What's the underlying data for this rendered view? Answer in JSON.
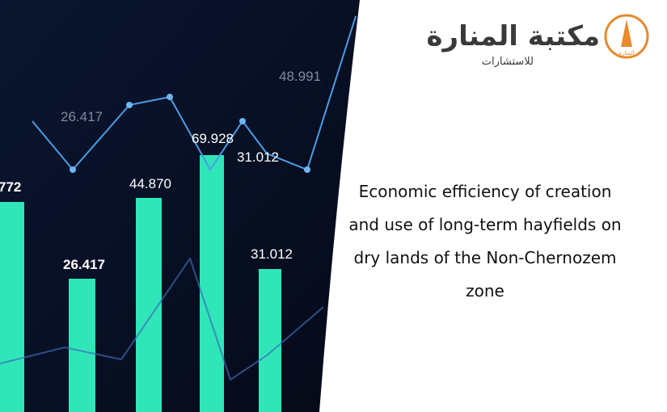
{
  "image": {
    "labels": [
      "48.991",
      "26.417",
      "69.928",
      "31.012",
      "772",
      "44.870",
      "26.417",
      "31.012"
    ]
  },
  "logo": {
    "name": "مكتبة المنارة",
    "tagline": "للاستشارات",
    "badge": "المنارة"
  },
  "title_lines": [
    "Economic efficiency of creation",
    "and use of long-term hayfields on",
    "dry lands of the Non-Chernozem",
    "zone"
  ]
}
